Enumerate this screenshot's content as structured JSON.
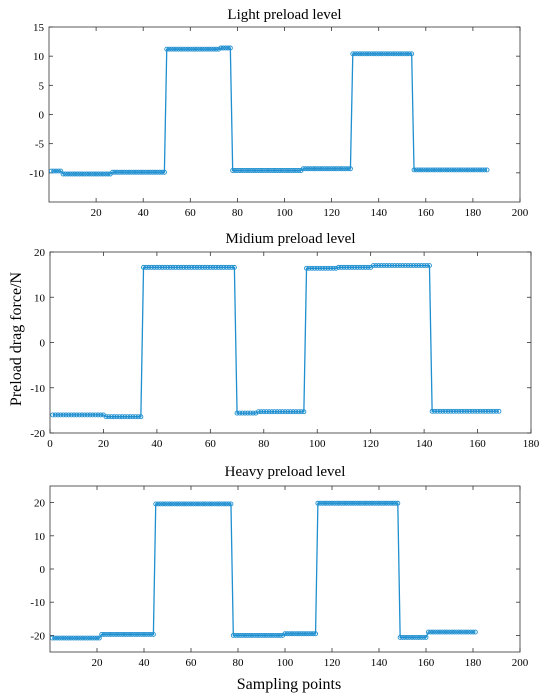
{
  "figure": {
    "ylabel": "Preload drag force/N",
    "xlabel": "Sampling points",
    "series_color": "#1f8fd0"
  },
  "chart_data": [
    {
      "type": "line",
      "title": "Light preload level",
      "xlim": [
        0,
        200
      ],
      "ylim": [
        -15,
        15
      ],
      "xticks": [
        20,
        40,
        60,
        80,
        100,
        120,
        140,
        160,
        180,
        200
      ],
      "yticks": [
        15,
        10,
        5,
        0,
        -5,
        -10
      ],
      "grid": false,
      "segments": [
        {
          "x_start": 1,
          "x_end": 5,
          "value": -9.7
        },
        {
          "x_start": 6,
          "x_end": 26,
          "value": -10.2
        },
        {
          "x_start": 27,
          "x_end": 49,
          "value": -9.9
        },
        {
          "x_start": 50,
          "x_end": 72,
          "value": 11.2
        },
        {
          "x_start": 73,
          "x_end": 77,
          "value": 11.4
        },
        {
          "x_start": 78,
          "x_end": 107,
          "value": -9.6
        },
        {
          "x_start": 108,
          "x_end": 128,
          "value": -9.3
        },
        {
          "x_start": 129,
          "x_end": 154,
          "value": 10.4
        },
        {
          "x_start": 155,
          "x_end": 186,
          "value": -9.5
        }
      ]
    },
    {
      "type": "line",
      "title": "Midium preload level",
      "xlim": [
        0,
        180
      ],
      "ylim": [
        -20,
        20
      ],
      "xticks": [
        0,
        20,
        40,
        60,
        80,
        100,
        120,
        140,
        160,
        180
      ],
      "yticks": [
        20,
        10,
        0,
        -10,
        -20
      ],
      "grid": false,
      "segments": [
        {
          "x_start": 1,
          "x_end": 20,
          "value": -16.0
        },
        {
          "x_start": 21,
          "x_end": 34,
          "value": -16.4
        },
        {
          "x_start": 35,
          "x_end": 69,
          "value": 16.6
        },
        {
          "x_start": 70,
          "x_end": 77,
          "value": -15.6
        },
        {
          "x_start": 78,
          "x_end": 95,
          "value": -15.3
        },
        {
          "x_start": 96,
          "x_end": 107,
          "value": 16.4
        },
        {
          "x_start": 108,
          "x_end": 120,
          "value": 16.6
        },
        {
          "x_start": 121,
          "x_end": 142,
          "value": 17.0
        },
        {
          "x_start": 143,
          "x_end": 168,
          "value": -15.2
        }
      ]
    },
    {
      "type": "line",
      "title": "Heavy preload level",
      "xlim": [
        0,
        200
      ],
      "ylim": [
        -25,
        25
      ],
      "xticks": [
        20,
        40,
        60,
        80,
        100,
        120,
        140,
        160,
        180,
        200
      ],
      "yticks": [
        20,
        10,
        0,
        -10,
        -20
      ],
      "grid": false,
      "segments": [
        {
          "x_start": 1,
          "x_end": 21,
          "value": -20.8
        },
        {
          "x_start": 22,
          "x_end": 44,
          "value": -19.7
        },
        {
          "x_start": 45,
          "x_end": 77,
          "value": 19.6
        },
        {
          "x_start": 78,
          "x_end": 99,
          "value": -20.0
        },
        {
          "x_start": 100,
          "x_end": 113,
          "value": -19.5
        },
        {
          "x_start": 114,
          "x_end": 148,
          "value": 19.8
        },
        {
          "x_start": 149,
          "x_end": 160,
          "value": -20.6
        },
        {
          "x_start": 161,
          "x_end": 181,
          "value": -19.0
        }
      ]
    }
  ]
}
